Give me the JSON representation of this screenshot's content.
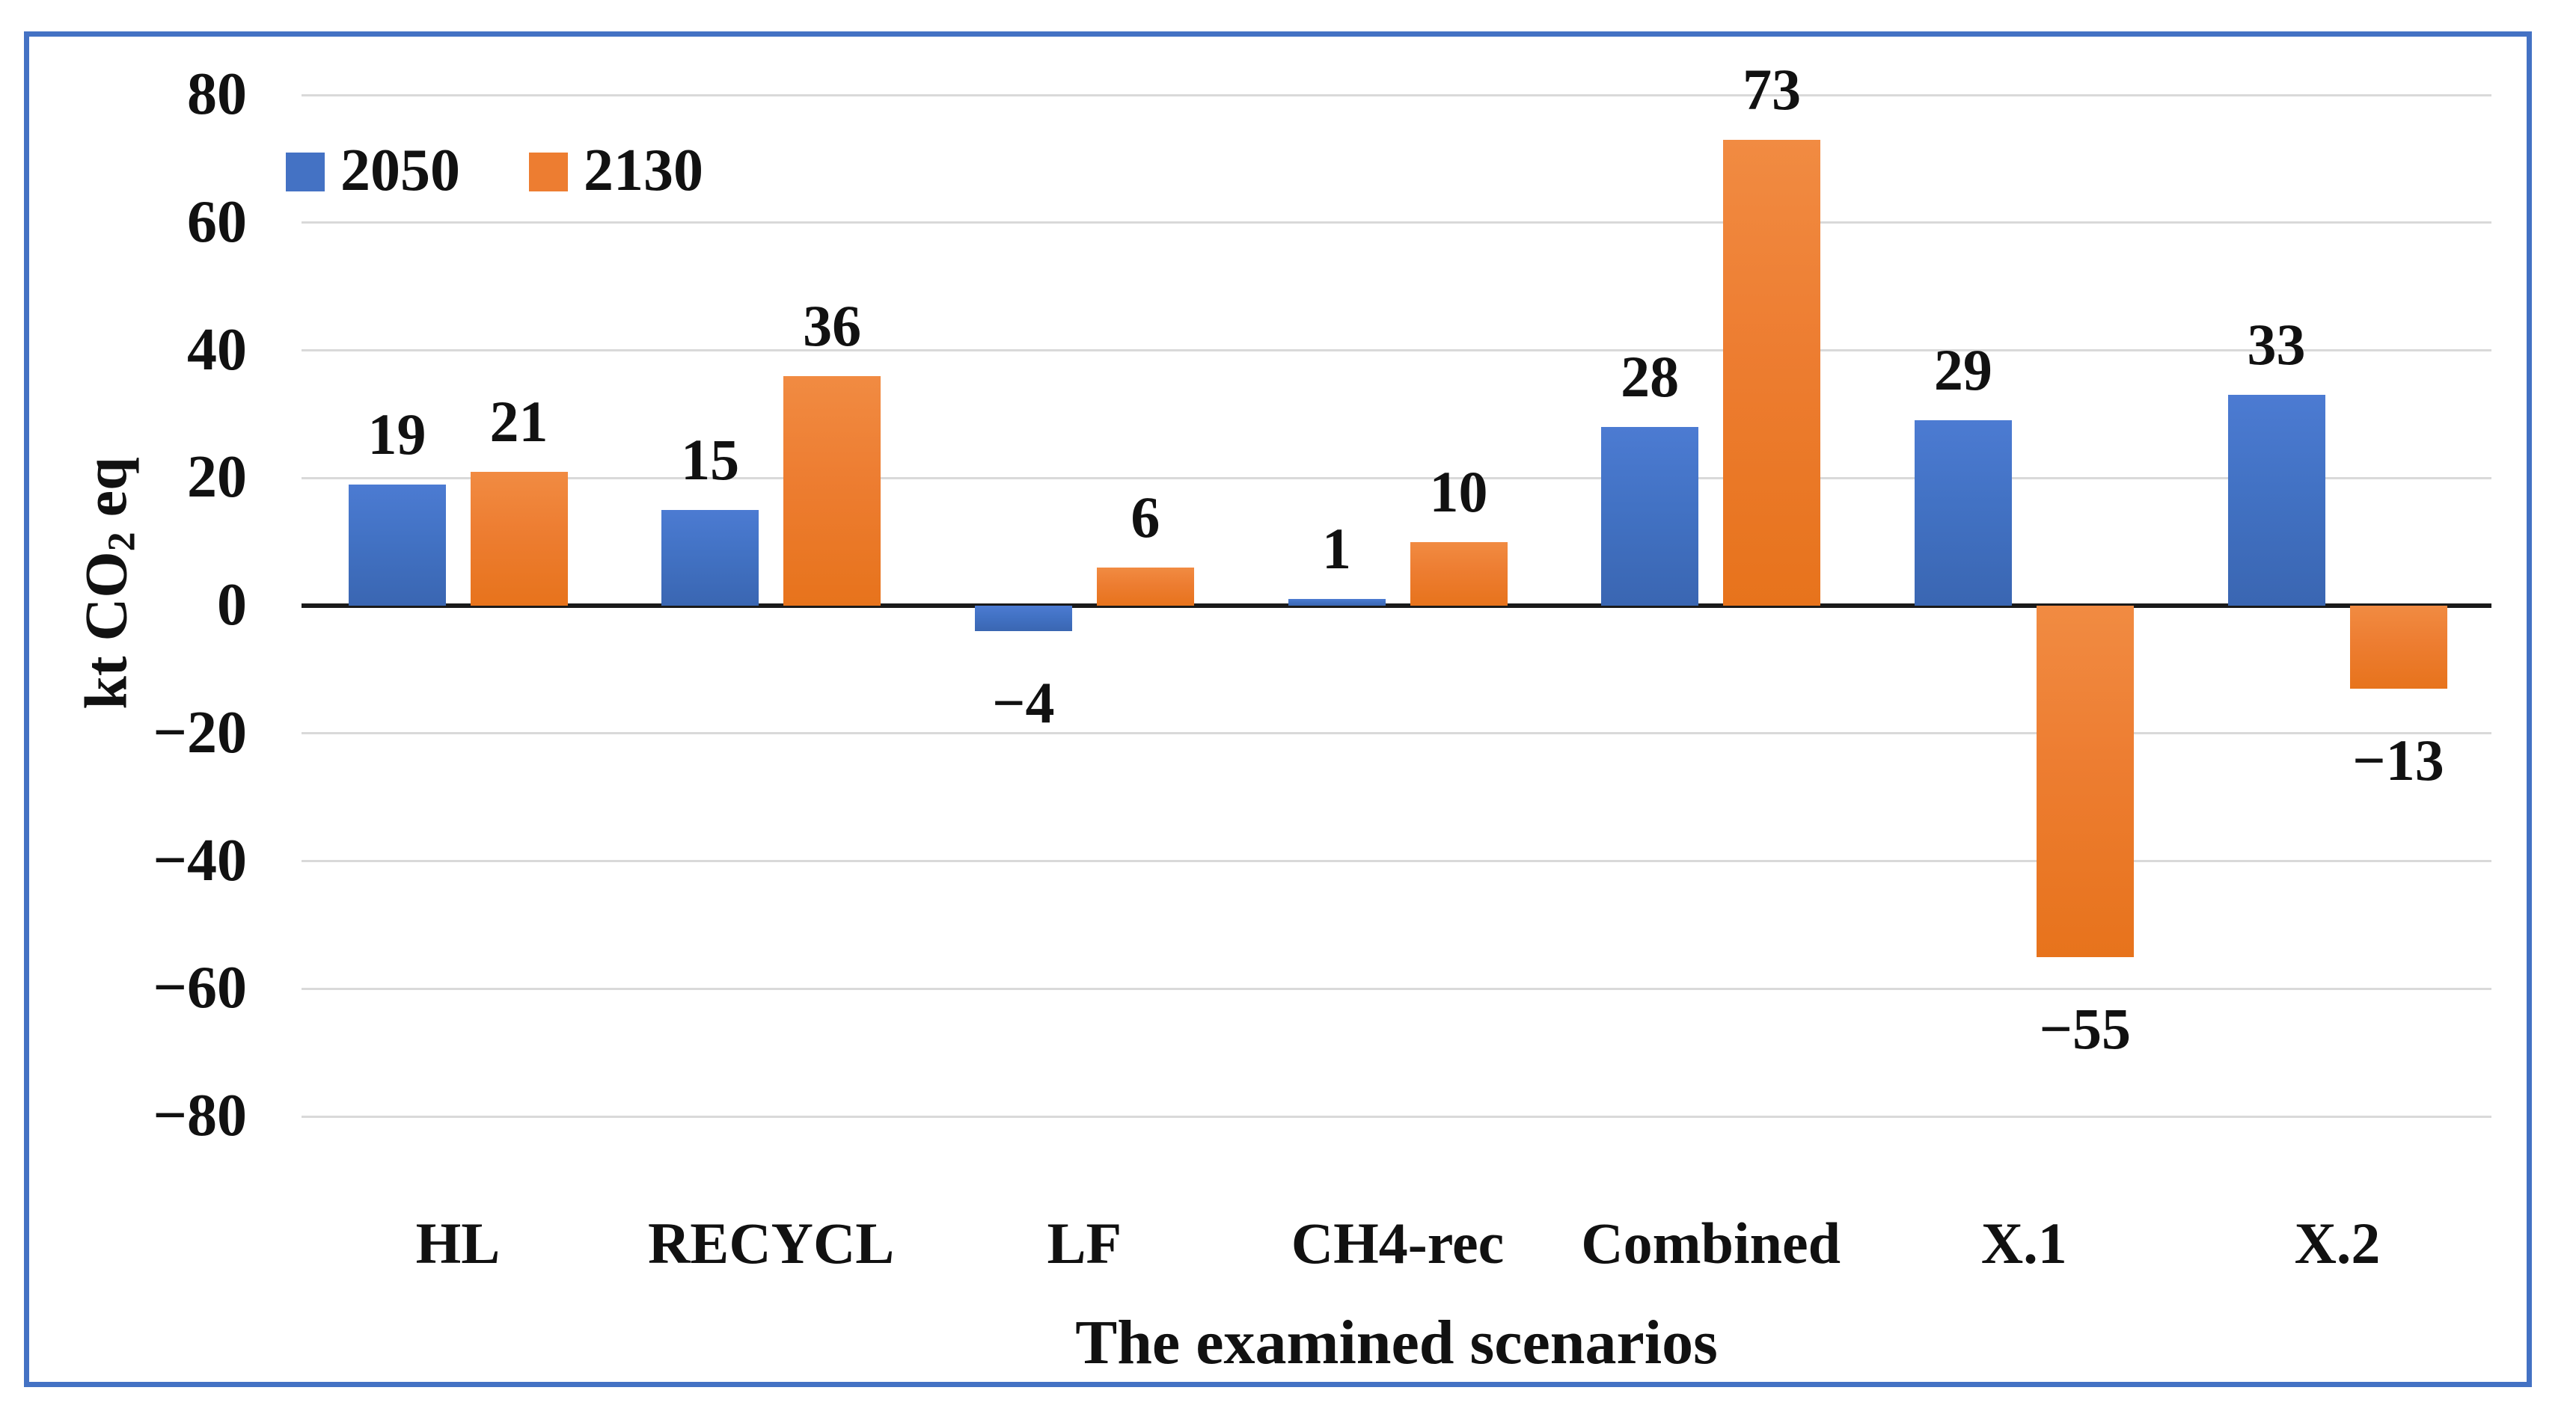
{
  "chart_data": {
    "type": "bar",
    "title": "",
    "categories": [
      "HL",
      "RECYCL",
      "LF",
      "CH4-rec",
      "Combined",
      "X.1",
      "X.2"
    ],
    "series": [
      {
        "name": "2050",
        "color": "#4472C4",
        "values": [
          19,
          15,
          -4,
          1,
          28,
          29,
          33
        ]
      },
      {
        "name": "2130",
        "color": "#ED7D31",
        "values": [
          21,
          36,
          6,
          10,
          73,
          -55,
          -13
        ]
      }
    ],
    "data_labels": {
      "2050": [
        "19",
        "15",
        "−4",
        "1",
        "28",
        "29",
        "33"
      ],
      "2130": [
        "21",
        "36",
        "6",
        "10",
        "73",
        "−55",
        "−13"
      ]
    },
    "xlabel": "The examined scenarios",
    "ylabel": "kt CO2 eq",
    "ylabel_parts": {
      "pre": "kt CO",
      "sub": "2",
      "post": " eq"
    },
    "ylim": [
      -80,
      80
    ],
    "yticks": [
      80,
      60,
      40,
      20,
      0,
      -20,
      -40,
      -60,
      -80
    ],
    "ytick_labels": [
      "80",
      "60",
      "40",
      "20",
      "0",
      "−20",
      "−40",
      "−60",
      "−80"
    ],
    "grid": true,
    "legend_position": "top-left",
    "legend": [
      "2050",
      "2130"
    ]
  },
  "style": {
    "frame_border_color": "#4472C4",
    "gridline_color": "#D9D9D9",
    "axis_line_color": "#1a1a1a",
    "bar_blue": "#4472C4",
    "bar_orange": "#ED7D31",
    "text_color": "#111111",
    "background": "#FFFFFF"
  }
}
